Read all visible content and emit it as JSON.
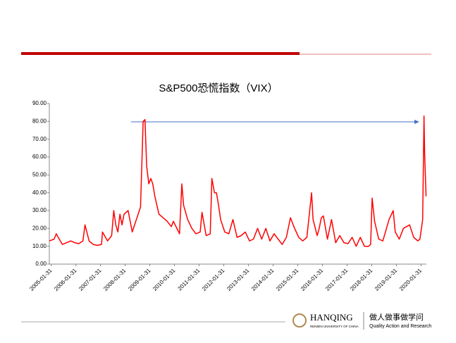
{
  "chart_data": {
    "type": "line",
    "title": "S&P500恐慌指数（VIX）",
    "xlim": [
      "2005-01-03",
      "2020-04-20"
    ],
    "xticks": [
      "2005-01-31",
      "2006-01-31",
      "2007-01-31",
      "2008-01-31",
      "2009-01-31",
      "2010-01-31",
      "2011-01-31",
      "2012-01-31",
      "2013-01-31",
      "2014-01-31",
      "2015-01-31",
      "2016-01-31",
      "2017-01-31",
      "2018-01-31",
      "2019-01-31",
      "2020-01-31"
    ],
    "ylim": [
      0,
      90
    ],
    "yticks": [
      {
        "value": 0,
        "label": "0.00"
      },
      {
        "value": 10,
        "label": "10.00"
      },
      {
        "value": 20,
        "label": "20.00"
      },
      {
        "value": 30,
        "label": "30.00"
      },
      {
        "value": 40,
        "label": "40.00"
      },
      {
        "value": 50,
        "label": "50.00"
      },
      {
        "value": 60,
        "label": "60.00"
      },
      {
        "value": 70,
        "label": "70.00"
      },
      {
        "value": 80,
        "label": "80.00"
      },
      {
        "value": 90,
        "label": "90.00"
      }
    ],
    "series": [
      {
        "color": "#ff0000",
        "x": [
          "2005-01-03",
          "2005-03-15",
          "2005-04-15",
          "2005-05-15",
          "2005-07-15",
          "2005-09-15",
          "2005-11-15",
          "2006-01-15",
          "2006-03-15",
          "2006-05-15",
          "2006-06-15",
          "2006-08-15",
          "2006-10-15",
          "2006-12-15",
          "2007-02-15",
          "2007-03-01",
          "2007-05-15",
          "2007-07-15",
          "2007-08-15",
          "2007-09-15",
          "2007-10-15",
          "2007-11-15",
          "2007-12-15",
          "2008-01-15",
          "2008-03-15",
          "2008-05-15",
          "2008-07-15",
          "2008-09-15",
          "2008-10-24",
          "2008-11-20",
          "2008-12-15",
          "2009-01-15",
          "2009-02-15",
          "2009-03-15",
          "2009-04-15",
          "2009-06-15",
          "2009-08-15",
          "2009-10-15",
          "2009-12-15",
          "2010-01-15",
          "2010-04-15",
          "2010-05-20",
          "2010-06-15",
          "2010-08-15",
          "2010-10-15",
          "2010-12-15",
          "2011-02-15",
          "2011-03-15",
          "2011-05-15",
          "2011-07-15",
          "2011-08-08",
          "2011-09-15",
          "2011-10-15",
          "2011-11-15",
          "2011-12-15",
          "2012-02-15",
          "2012-04-15",
          "2012-06-15",
          "2012-08-15",
          "2012-10-15",
          "2012-12-15",
          "2013-02-15",
          "2013-04-15",
          "2013-06-15",
          "2013-08-15",
          "2013-10-15",
          "2013-12-15",
          "2014-02-15",
          "2014-04-15",
          "2014-06-15",
          "2014-08-15",
          "2014-10-15",
          "2014-12-15",
          "2015-02-15",
          "2015-04-15",
          "2015-06-15",
          "2015-08-24",
          "2015-09-15",
          "2015-11-15",
          "2015-12-15",
          "2016-01-15",
          "2016-02-15",
          "2016-04-15",
          "2016-06-15",
          "2016-08-15",
          "2016-10-15",
          "2016-12-15",
          "2017-02-15",
          "2017-04-15",
          "2017-06-15",
          "2017-08-15",
          "2017-10-15",
          "2017-12-15",
          "2018-01-15",
          "2018-02-06",
          "2018-03-15",
          "2018-05-15",
          "2018-07-15",
          "2018-10-15",
          "2018-12-15",
          "2019-01-15",
          "2019-03-15",
          "2019-05-15",
          "2019-08-15",
          "2019-10-15",
          "2019-12-15",
          "2020-01-15",
          "2020-02-25",
          "2020-03-16",
          "2020-03-25",
          "2020-04-15"
        ],
        "values": [
          13,
          14,
          17,
          15,
          11,
          12,
          13,
          12,
          11.5,
          13,
          22,
          13,
          11,
          10.5,
          11,
          18,
          13,
          16,
          30,
          22,
          18,
          28,
          22,
          28,
          30,
          18,
          25,
          32,
          80,
          81,
          55,
          45,
          48,
          45,
          38,
          28,
          26,
          24,
          21,
          24,
          17,
          45,
          33,
          25,
          20,
          17,
          18,
          29,
          16,
          17,
          48,
          40,
          40,
          33,
          25,
          18,
          17,
          25,
          15,
          16,
          18,
          13,
          14,
          20,
          14,
          20,
          13,
          17,
          14,
          11,
          15,
          26,
          20,
          15,
          13,
          15,
          40,
          25,
          16,
          20,
          26,
          27,
          14,
          25,
          12,
          16,
          12,
          11.5,
          15,
          10,
          15,
          10,
          10,
          11,
          37,
          24,
          14,
          13,
          25,
          30,
          18,
          14,
          20,
          22,
          15,
          13,
          14,
          25,
          83,
          62,
          38
        ]
      }
    ]
  },
  "footer": {
    "brand": "HANQING",
    "brand_sub": "RENMIN UNIVERSITY OF CHINA",
    "motto": "做人做事做学问",
    "motto_en": "Quality Action and Research"
  }
}
